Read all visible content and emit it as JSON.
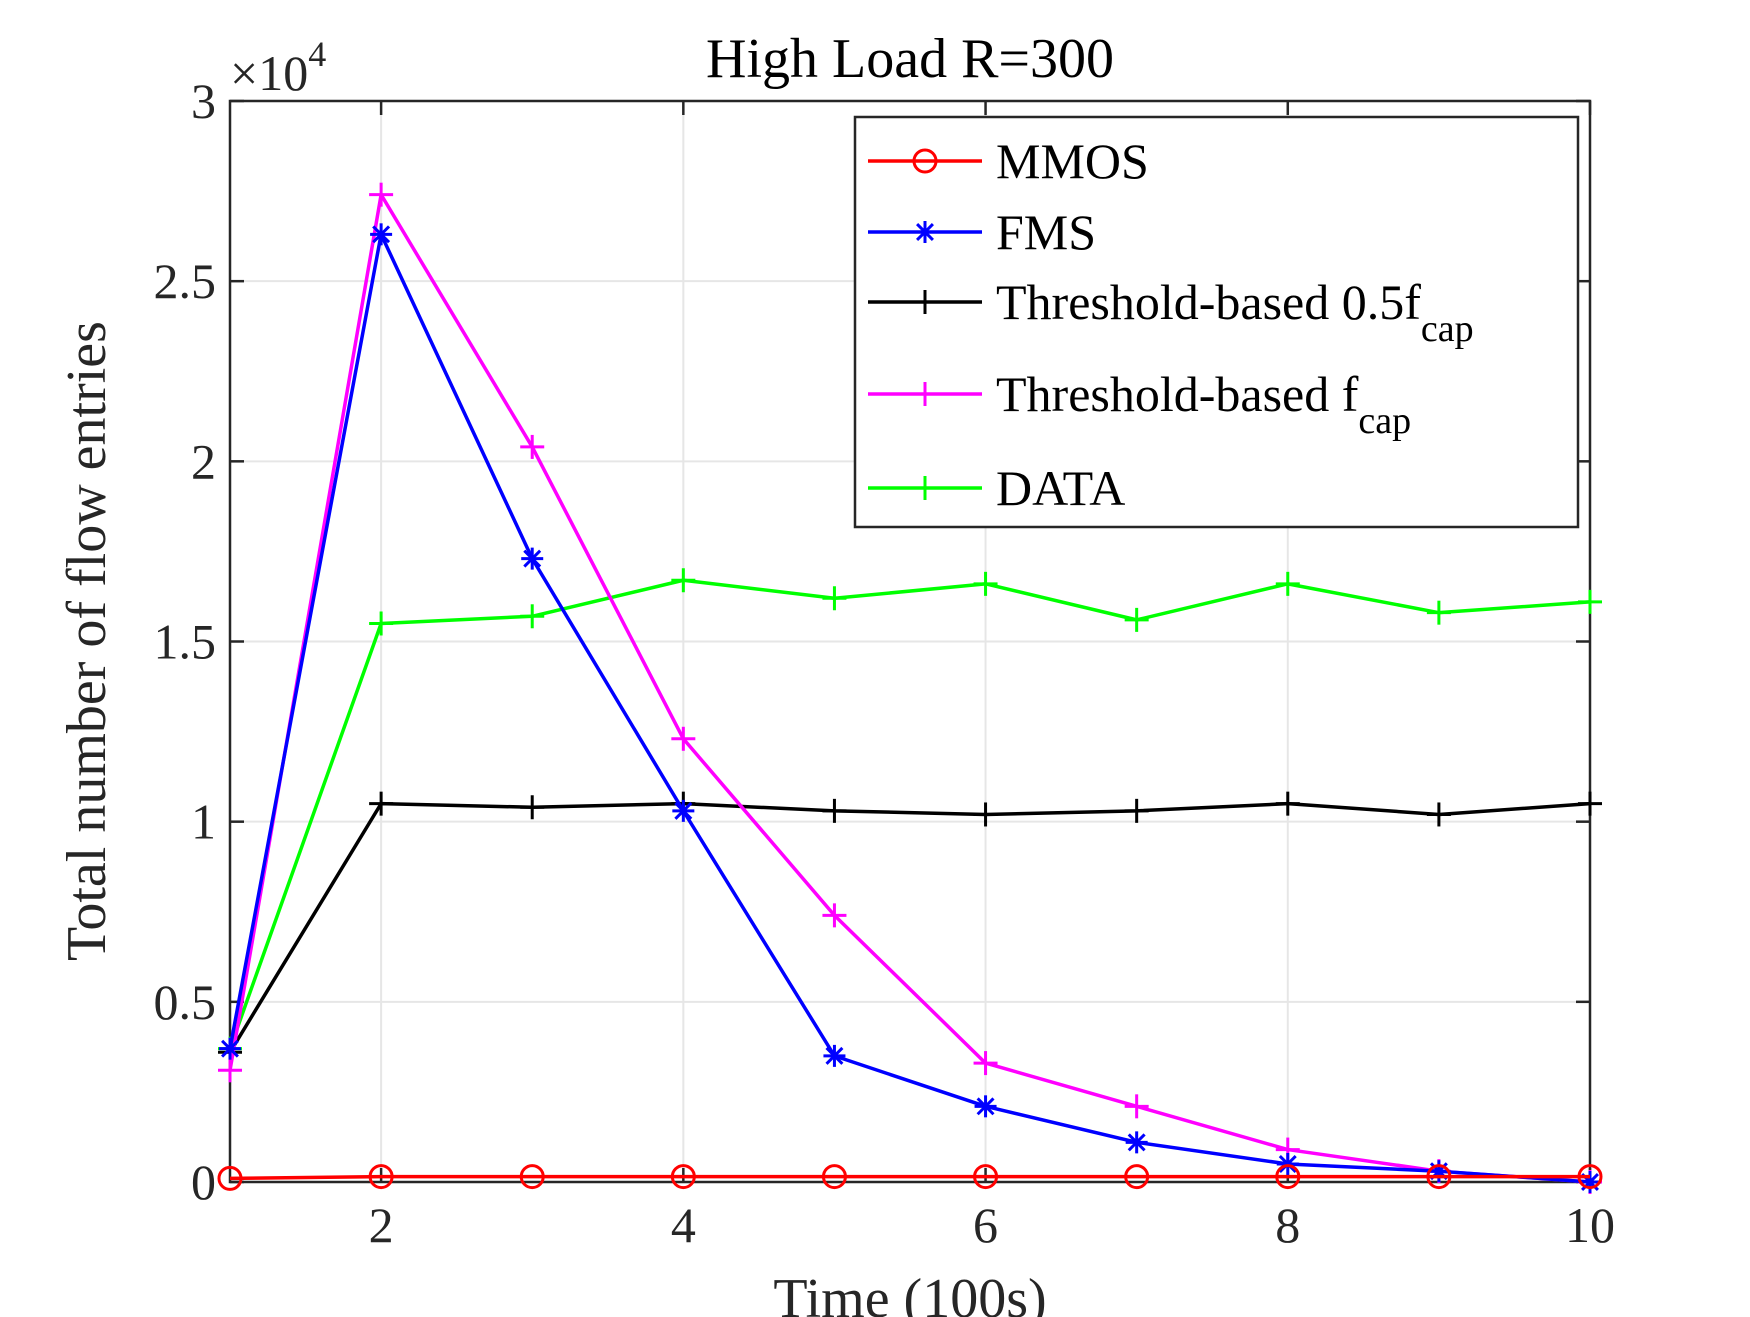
{
  "chart_data": {
    "type": "line",
    "title": "High Load R=300",
    "xlabel": "Time (100s)",
    "ylabel": "Total number of flow entries",
    "y_multiplier_base": "×10",
    "y_multiplier_exp": "4",
    "xlim": [
      1,
      10
    ],
    "ylim": [
      0,
      3
    ],
    "grid": true,
    "legend_position": "top-right",
    "x": [
      1,
      2,
      3,
      4,
      5,
      6,
      7,
      8,
      9,
      10
    ],
    "x_ticks": [
      2,
      4,
      6,
      8,
      10
    ],
    "x_tick_labels": [
      "2",
      "4",
      "6",
      "8",
      "10"
    ],
    "y_ticks": [
      0,
      0.5,
      1,
      1.5,
      2,
      2.5,
      3
    ],
    "y_tick_labels": [
      "0",
      "0.5",
      "1",
      "1.5",
      "2",
      "2.5",
      "3"
    ],
    "series": [
      {
        "name": "MMOS",
        "name_main": "MMOS",
        "name_sub": "",
        "color": "#ff0000",
        "marker": "circle",
        "values": [
          0.01,
          0.015,
          0.015,
          0.015,
          0.015,
          0.015,
          0.015,
          0.015,
          0.015,
          0.015
        ]
      },
      {
        "name": "FMS",
        "name_main": "FMS",
        "name_sub": "",
        "color": "#0000ff",
        "marker": "asterisk",
        "values": [
          0.37,
          2.63,
          1.73,
          1.03,
          0.35,
          0.21,
          0.11,
          0.05,
          0.03,
          0.0
        ]
      },
      {
        "name": "Threshold-based 0.5fcap",
        "name_main": "Threshold-based 0.5f",
        "name_sub": "cap",
        "color": "#000000",
        "marker": "plus",
        "values": [
          0.36,
          1.05,
          1.04,
          1.05,
          1.03,
          1.02,
          1.03,
          1.05,
          1.02,
          1.05
        ]
      },
      {
        "name": "Threshold-based fcap",
        "name_main": "Threshold-based f",
        "name_sub": "cap",
        "color": "#ff00ff",
        "marker": "plus",
        "values": [
          0.31,
          2.74,
          2.04,
          1.23,
          0.74,
          0.33,
          0.21,
          0.09,
          0.03,
          0.0
        ]
      },
      {
        "name": "DATA",
        "name_main": "DATA",
        "name_sub": "",
        "color": "#00ff00",
        "marker": "plus",
        "values": [
          0.37,
          1.55,
          1.57,
          1.67,
          1.62,
          1.66,
          1.56,
          1.66,
          1.58,
          1.61
        ]
      }
    ]
  }
}
